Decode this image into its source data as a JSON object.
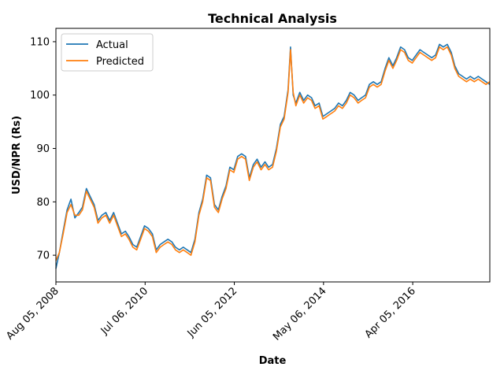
{
  "chart_data": {
    "type": "line",
    "title": "Technical Analysis",
    "xlabel": "Date",
    "ylabel": "USD/NPR (Rs)",
    "xlim": [
      "2008-08-05",
      "2017-12-01"
    ],
    "ylim": [
      65,
      112.5
    ],
    "yticks": [
      70,
      80,
      90,
      100,
      110
    ],
    "xticks": [
      {
        "date": "2008-08-05",
        "label": "Aug 05, 2008"
      },
      {
        "date": "2010-07-06",
        "label": "Jul 06, 2010"
      },
      {
        "date": "2012-06-05",
        "label": "Jun 05, 2012"
      },
      {
        "date": "2014-05-06",
        "label": "May 06, 2014"
      },
      {
        "date": "2016-04-05",
        "label": "Apr 05, 2016"
      }
    ],
    "grid": false,
    "legend": "upper left",
    "series": [
      {
        "name": "Actual",
        "color": "#1f77b4",
        "points": [
          [
            "2008-08-05",
            67.5
          ],
          [
            "2008-09-01",
            70.5
          ],
          [
            "2008-10-01",
            74.5
          ],
          [
            "2008-11-01",
            78.5
          ],
          [
            "2008-12-01",
            80.5
          ],
          [
            "2009-01-01",
            77.0
          ],
          [
            "2009-02-01",
            78.0
          ],
          [
            "2009-03-01",
            79.0
          ],
          [
            "2009-04-01",
            82.5
          ],
          [
            "2009-05-01",
            81.0
          ],
          [
            "2009-06-01",
            79.5
          ],
          [
            "2009-07-01",
            76.5
          ],
          [
            "2009-08-01",
            77.5
          ],
          [
            "2009-09-01",
            78.0
          ],
          [
            "2009-10-01",
            76.5
          ],
          [
            "2009-11-01",
            78.0
          ],
          [
            "2009-12-01",
            76.0
          ],
          [
            "2010-01-01",
            74.0
          ],
          [
            "2010-02-01",
            74.5
          ],
          [
            "2010-03-01",
            73.5
          ],
          [
            "2010-04-01",
            72.0
          ],
          [
            "2010-05-01",
            71.5
          ],
          [
            "2010-06-01",
            73.5
          ],
          [
            "2010-07-01",
            75.5
          ],
          [
            "2010-08-01",
            75.0
          ],
          [
            "2010-09-01",
            74.0
          ],
          [
            "2010-10-01",
            71.0
          ],
          [
            "2010-11-01",
            72.0
          ],
          [
            "2010-12-01",
            72.5
          ],
          [
            "2011-01-01",
            73.0
          ],
          [
            "2011-02-01",
            72.5
          ],
          [
            "2011-03-01",
            71.5
          ],
          [
            "2011-04-01",
            71.0
          ],
          [
            "2011-05-01",
            71.5
          ],
          [
            "2011-06-01",
            71.0
          ],
          [
            "2011-07-01",
            70.5
          ],
          [
            "2011-08-01",
            73.0
          ],
          [
            "2011-09-01",
            78.0
          ],
          [
            "2011-10-01",
            80.5
          ],
          [
            "2011-11-01",
            85.0
          ],
          [
            "2011-12-01",
            84.5
          ],
          [
            "2012-01-01",
            79.5
          ],
          [
            "2012-02-01",
            78.5
          ],
          [
            "2012-03-01",
            81.0
          ],
          [
            "2012-04-01",
            83.0
          ],
          [
            "2012-05-01",
            86.5
          ],
          [
            "2012-06-01",
            86.0
          ],
          [
            "2012-07-01",
            88.5
          ],
          [
            "2012-08-01",
            89.0
          ],
          [
            "2012-09-01",
            88.5
          ],
          [
            "2012-10-01",
            84.5
          ],
          [
            "2012-11-01",
            87.0
          ],
          [
            "2012-12-01",
            88.0
          ],
          [
            "2013-01-01",
            86.5
          ],
          [
            "2013-02-01",
            87.5
          ],
          [
            "2013-03-01",
            86.5
          ],
          [
            "2013-04-01",
            87.0
          ],
          [
            "2013-05-01",
            90.0
          ],
          [
            "2013-06-01",
            94.5
          ],
          [
            "2013-07-01",
            96.0
          ],
          [
            "2013-08-01",
            101.0
          ],
          [
            "2013-08-20",
            109.0
          ],
          [
            "2013-09-10",
            100.0
          ],
          [
            "2013-10-01",
            98.5
          ],
          [
            "2013-11-01",
            100.5
          ],
          [
            "2013-12-01",
            99.0
          ],
          [
            "2014-01-01",
            100.0
          ],
          [
            "2014-02-01",
            99.5
          ],
          [
            "2014-03-01",
            98.0
          ],
          [
            "2014-04-01",
            98.5
          ],
          [
            "2014-05-01",
            96.0
          ],
          [
            "2014-06-01",
            96.5
          ],
          [
            "2014-07-01",
            97.0
          ],
          [
            "2014-08-01",
            97.5
          ],
          [
            "2014-09-01",
            98.5
          ],
          [
            "2014-10-01",
            98.0
          ],
          [
            "2014-11-01",
            99.0
          ],
          [
            "2014-12-01",
            100.5
          ],
          [
            "2015-01-01",
            100.0
          ],
          [
            "2015-02-01",
            99.0
          ],
          [
            "2015-03-01",
            99.5
          ],
          [
            "2015-04-01",
            100.0
          ],
          [
            "2015-05-01",
            102.0
          ],
          [
            "2015-06-01",
            102.5
          ],
          [
            "2015-07-01",
            102.0
          ],
          [
            "2015-08-01",
            102.5
          ],
          [
            "2015-09-01",
            105.0
          ],
          [
            "2015-10-01",
            107.0
          ],
          [
            "2015-11-01",
            105.5
          ],
          [
            "2015-12-01",
            107.0
          ],
          [
            "2016-01-01",
            109.0
          ],
          [
            "2016-02-01",
            108.5
          ],
          [
            "2016-03-01",
            107.0
          ],
          [
            "2016-04-01",
            106.5
          ],
          [
            "2016-05-01",
            107.5
          ],
          [
            "2016-06-01",
            108.5
          ],
          [
            "2016-07-01",
            108.0
          ],
          [
            "2016-08-01",
            107.5
          ],
          [
            "2016-09-01",
            107.0
          ],
          [
            "2016-10-01",
            107.5
          ],
          [
            "2016-11-01",
            109.5
          ],
          [
            "2016-12-01",
            109.0
          ],
          [
            "2017-01-01",
            109.5
          ],
          [
            "2017-02-01",
            108.0
          ],
          [
            "2017-03-01",
            105.5
          ],
          [
            "2017-04-01",
            104.0
          ],
          [
            "2017-05-01",
            103.5
          ],
          [
            "2017-06-01",
            103.0
          ],
          [
            "2017-07-01",
            103.5
          ],
          [
            "2017-08-01",
            103.0
          ],
          [
            "2017-09-01",
            103.5
          ],
          [
            "2017-10-01",
            103.0
          ],
          [
            "2017-11-01",
            102.5
          ],
          [
            "2017-12-01",
            102.0
          ]
        ]
      },
      {
        "name": "Predicted",
        "color": "#ff7f0e",
        "points": [
          [
            "2008-08-05",
            69.0
          ],
          [
            "2008-09-01",
            70.5
          ],
          [
            "2008-10-01",
            74.0
          ],
          [
            "2008-11-01",
            78.0
          ],
          [
            "2008-12-01",
            79.5
          ],
          [
            "2009-01-01",
            77.5
          ],
          [
            "2009-02-01",
            77.5
          ],
          [
            "2009-03-01",
            78.5
          ],
          [
            "2009-04-01",
            82.0
          ],
          [
            "2009-05-01",
            80.5
          ],
          [
            "2009-06-01",
            79.0
          ],
          [
            "2009-07-01",
            76.0
          ],
          [
            "2009-08-01",
            77.0
          ],
          [
            "2009-09-01",
            77.5
          ],
          [
            "2009-10-01",
            76.0
          ],
          [
            "2009-11-01",
            77.5
          ],
          [
            "2009-12-01",
            75.5
          ],
          [
            "2010-01-01",
            73.5
          ],
          [
            "2010-02-01",
            74.0
          ],
          [
            "2010-03-01",
            73.0
          ],
          [
            "2010-04-01",
            71.5
          ],
          [
            "2010-05-01",
            71.0
          ],
          [
            "2010-06-01",
            73.0
          ],
          [
            "2010-07-01",
            75.0
          ],
          [
            "2010-08-01",
            74.5
          ],
          [
            "2010-09-01",
            73.5
          ],
          [
            "2010-10-01",
            70.5
          ],
          [
            "2010-11-01",
            71.5
          ],
          [
            "2010-12-01",
            72.0
          ],
          [
            "2011-01-01",
            72.5
          ],
          [
            "2011-02-01",
            72.0
          ],
          [
            "2011-03-01",
            71.0
          ],
          [
            "2011-04-01",
            70.5
          ],
          [
            "2011-05-01",
            71.0
          ],
          [
            "2011-06-01",
            70.5
          ],
          [
            "2011-07-01",
            70.0
          ],
          [
            "2011-08-01",
            72.5
          ],
          [
            "2011-09-01",
            77.5
          ],
          [
            "2011-10-01",
            80.0
          ],
          [
            "2011-11-01",
            84.5
          ],
          [
            "2011-12-01",
            84.0
          ],
          [
            "2012-01-01",
            79.0
          ],
          [
            "2012-02-01",
            78.0
          ],
          [
            "2012-03-01",
            80.5
          ],
          [
            "2012-04-01",
            82.5
          ],
          [
            "2012-05-01",
            86.0
          ],
          [
            "2012-06-01",
            85.5
          ],
          [
            "2012-07-01",
            88.0
          ],
          [
            "2012-08-01",
            88.5
          ],
          [
            "2012-09-01",
            88.0
          ],
          [
            "2012-10-01",
            84.0
          ],
          [
            "2012-11-01",
            86.5
          ],
          [
            "2012-12-01",
            87.5
          ],
          [
            "2013-01-01",
            86.0
          ],
          [
            "2013-02-01",
            87.0
          ],
          [
            "2013-03-01",
            86.0
          ],
          [
            "2013-04-01",
            86.5
          ],
          [
            "2013-05-01",
            89.5
          ],
          [
            "2013-06-01",
            94.0
          ],
          [
            "2013-07-01",
            95.5
          ],
          [
            "2013-08-01",
            100.5
          ],
          [
            "2013-08-20",
            108.5
          ],
          [
            "2013-09-10",
            100.5
          ],
          [
            "2013-10-01",
            98.0
          ],
          [
            "2013-11-01",
            100.0
          ],
          [
            "2013-12-01",
            98.5
          ],
          [
            "2014-01-01",
            99.5
          ],
          [
            "2014-02-01",
            99.0
          ],
          [
            "2014-03-01",
            97.5
          ],
          [
            "2014-04-01",
            98.0
          ],
          [
            "2014-05-01",
            95.5
          ],
          [
            "2014-06-01",
            96.0
          ],
          [
            "2014-07-01",
            96.5
          ],
          [
            "2014-08-01",
            97.0
          ],
          [
            "2014-09-01",
            98.0
          ],
          [
            "2014-10-01",
            97.5
          ],
          [
            "2014-11-01",
            98.5
          ],
          [
            "2014-12-01",
            100.0
          ],
          [
            "2015-01-01",
            99.5
          ],
          [
            "2015-02-01",
            98.5
          ],
          [
            "2015-03-01",
            99.0
          ],
          [
            "2015-04-01",
            99.5
          ],
          [
            "2015-05-01",
            101.5
          ],
          [
            "2015-06-01",
            102.0
          ],
          [
            "2015-07-01",
            101.5
          ],
          [
            "2015-08-01",
            102.0
          ],
          [
            "2015-09-01",
            104.5
          ],
          [
            "2015-10-01",
            106.5
          ],
          [
            "2015-11-01",
            105.0
          ],
          [
            "2015-12-01",
            106.5
          ],
          [
            "2016-01-01",
            108.5
          ],
          [
            "2016-02-01",
            108.0
          ],
          [
            "2016-03-01",
            106.5
          ],
          [
            "2016-04-01",
            106.0
          ],
          [
            "2016-05-01",
            107.0
          ],
          [
            "2016-06-01",
            108.0
          ],
          [
            "2016-07-01",
            107.5
          ],
          [
            "2016-08-01",
            107.0
          ],
          [
            "2016-09-01",
            106.5
          ],
          [
            "2016-10-01",
            107.0
          ],
          [
            "2016-11-01",
            109.0
          ],
          [
            "2016-12-01",
            108.5
          ],
          [
            "2017-01-01",
            109.0
          ],
          [
            "2017-02-01",
            107.5
          ],
          [
            "2017-03-01",
            105.0
          ],
          [
            "2017-04-01",
            103.5
          ],
          [
            "2017-05-01",
            103.0
          ],
          [
            "2017-06-01",
            102.5
          ],
          [
            "2017-07-01",
            103.0
          ],
          [
            "2017-08-01",
            102.5
          ],
          [
            "2017-09-01",
            103.0
          ],
          [
            "2017-10-01",
            102.5
          ],
          [
            "2017-11-01",
            102.0
          ],
          [
            "2017-12-01",
            102.5
          ]
        ]
      }
    ]
  }
}
